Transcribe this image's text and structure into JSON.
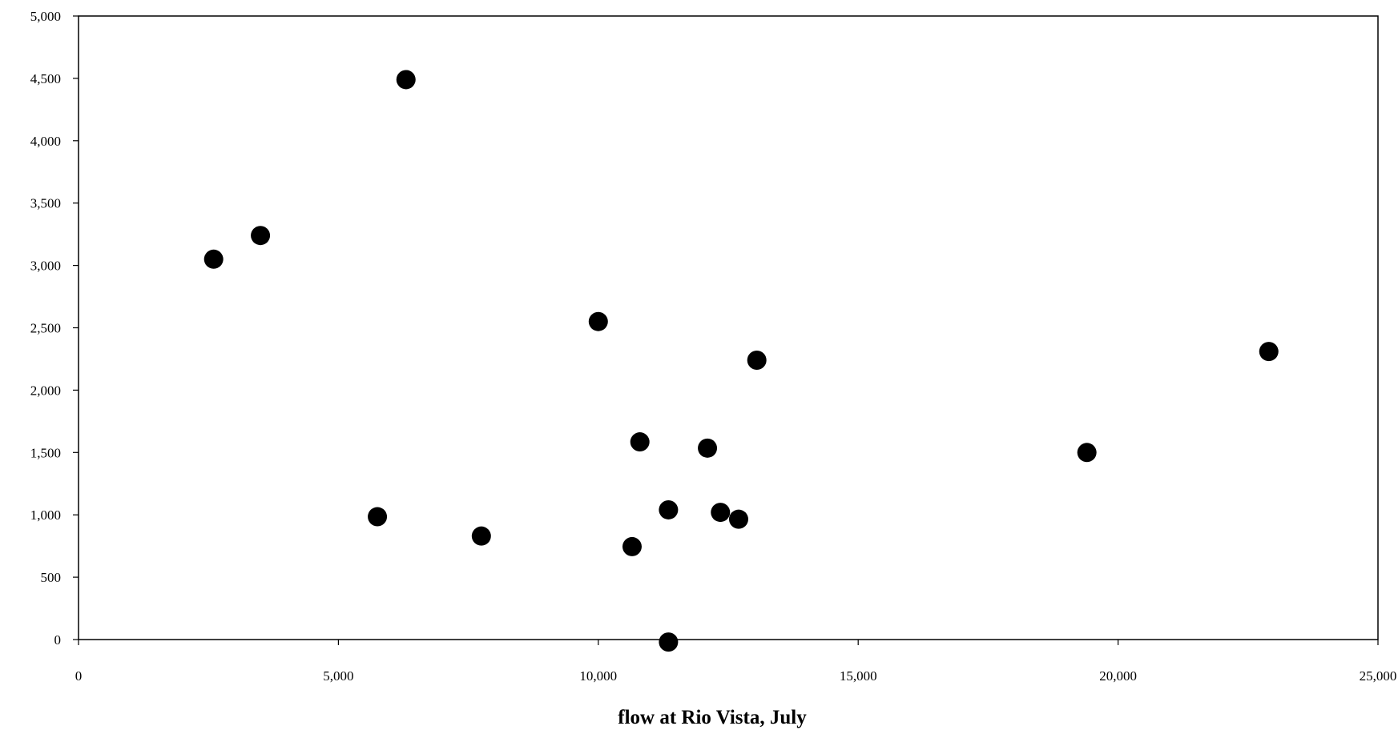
{
  "chart_data": {
    "type": "scatter",
    "title": "",
    "xlabel": "flow at Rio Vista, July",
    "ylabel": "",
    "xlim": [
      0,
      25000
    ],
    "ylim": [
      0,
      5000
    ],
    "x_ticks": [
      0,
      5000,
      10000,
      15000,
      20000,
      25000
    ],
    "x_tick_labels": [
      "0",
      "5,000",
      "10,000",
      "15,000",
      "20,000",
      "25,000"
    ],
    "y_ticks": [
      0,
      500,
      1000,
      1500,
      2000,
      2500,
      3000,
      3500,
      4000,
      4500,
      5000
    ],
    "y_tick_labels": [
      "0",
      "500",
      "1,000",
      "1,500",
      "2,000",
      "2,500",
      "3,000",
      "3,500",
      "4,000",
      "4,500",
      "5,000"
    ],
    "grid": false,
    "legend": "none",
    "marker_color": "#000000",
    "points": [
      {
        "x": 2600,
        "y": 3050
      },
      {
        "x": 3500,
        "y": 3240
      },
      {
        "x": 5750,
        "y": 985
      },
      {
        "x": 6300,
        "y": 4490
      },
      {
        "x": 7750,
        "y": 830
      },
      {
        "x": 10000,
        "y": 2550
      },
      {
        "x": 10650,
        "y": 745
      },
      {
        "x": 10800,
        "y": 1585
      },
      {
        "x": 11350,
        "y": 1040
      },
      {
        "x": 11350,
        "y": -20
      },
      {
        "x": 12100,
        "y": 1535
      },
      {
        "x": 12350,
        "y": 1020
      },
      {
        "x": 12700,
        "y": 965
      },
      {
        "x": 13050,
        "y": 2240
      },
      {
        "x": 19400,
        "y": 1500
      },
      {
        "x": 22900,
        "y": 2310
      }
    ]
  }
}
